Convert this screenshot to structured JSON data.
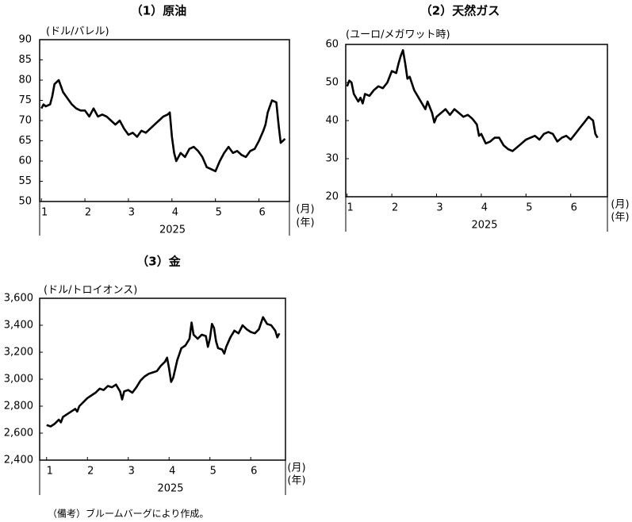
{
  "chart_data": [
    {
      "type": "line",
      "title": "（1）原油",
      "ylabel": "(ドル/バレル)",
      "x_unit": "(月)",
      "year_unit": "(年)",
      "year": "2025",
      "color": "#000000",
      "xlim": [
        0.96,
        6.7
      ],
      "xticks": [
        1,
        2,
        3,
        4,
        5,
        6
      ],
      "ylim": [
        50,
        90
      ],
      "yticks": [
        50,
        55,
        60,
        65,
        70,
        75,
        80,
        85,
        90
      ],
      "x": [
        1.0,
        1.05,
        1.1,
        1.2,
        1.25,
        1.3,
        1.4,
        1.5,
        1.6,
        1.7,
        1.8,
        1.9,
        2.0,
        2.1,
        2.2,
        2.3,
        2.4,
        2.5,
        2.6,
        2.7,
        2.8,
        2.9,
        3.0,
        3.1,
        3.2,
        3.3,
        3.4,
        3.5,
        3.6,
        3.7,
        3.8,
        3.9,
        3.95,
        4.0,
        4.05,
        4.1,
        4.2,
        4.3,
        4.4,
        4.5,
        4.6,
        4.7,
        4.8,
        4.9,
        5.0,
        5.1,
        5.2,
        5.3,
        5.4,
        5.5,
        5.6,
        5.7,
        5.8,
        5.9,
        6.0,
        6.1,
        6.15,
        6.2,
        6.3,
        6.4,
        6.45,
        6.5,
        6.6
      ],
      "values": [
        73,
        74,
        73.5,
        74,
        76,
        79,
        80,
        77,
        75.5,
        74,
        73,
        72.5,
        72.5,
        71,
        73,
        71,
        71.5,
        71,
        70,
        69,
        70,
        68,
        66.5,
        67,
        66,
        67.5,
        67,
        68,
        69,
        70,
        71,
        71.5,
        72,
        66,
        62,
        60,
        62,
        61,
        63,
        63.5,
        62.5,
        61,
        58.5,
        58,
        57.5,
        60,
        62,
        63.5,
        62,
        62.5,
        61.5,
        61,
        62.5,
        63,
        65,
        67.5,
        69,
        72,
        75,
        74.5,
        69,
        64.5,
        65.5
      ]
    },
    {
      "type": "line",
      "title": "（2）天然ガス",
      "ylabel": "(ユーロ/メガワット時)",
      "x_unit": "(月)",
      "year_unit": "(年)",
      "year": "2025",
      "color": "#000000",
      "xlim": [
        0.97,
        6.82
      ],
      "xticks": [
        1,
        2,
        3,
        4,
        5,
        6
      ],
      "ylim": [
        20,
        60
      ],
      "yticks": [
        20,
        30,
        40,
        50,
        60
      ],
      "x": [
        1.0,
        1.05,
        1.1,
        1.15,
        1.25,
        1.3,
        1.35,
        1.4,
        1.5,
        1.6,
        1.7,
        1.8,
        1.9,
        2.0,
        2.1,
        2.15,
        2.2,
        2.25,
        2.3,
        2.35,
        2.4,
        2.5,
        2.6,
        2.7,
        2.75,
        2.8,
        2.9,
        2.95,
        3.0,
        3.1,
        3.2,
        3.3,
        3.4,
        3.5,
        3.6,
        3.7,
        3.8,
        3.9,
        3.95,
        4.0,
        4.1,
        4.2,
        4.3,
        4.4,
        4.5,
        4.6,
        4.7,
        4.8,
        4.9,
        5.0,
        5.1,
        5.2,
        5.3,
        5.4,
        5.5,
        5.6,
        5.7,
        5.8,
        5.9,
        6.0,
        6.1,
        6.2,
        6.3,
        6.4,
        6.5,
        6.55,
        6.6
      ],
      "values": [
        49,
        50.5,
        50,
        47,
        45,
        46,
        44.5,
        47,
        46.5,
        48,
        49,
        48.5,
        50,
        53,
        52.5,
        55,
        57,
        58.5,
        55,
        51,
        51.5,
        48,
        46,
        44,
        43,
        45,
        42,
        39.5,
        41,
        42,
        43,
        41.5,
        43,
        42,
        41,
        41.5,
        40.5,
        39,
        36,
        36.5,
        34,
        34.5,
        35.5,
        35.5,
        33.5,
        32.5,
        32,
        33,
        34,
        35,
        35.5,
        36,
        35,
        36.5,
        37,
        36.5,
        34.5,
        35.5,
        36,
        35,
        36.5,
        38,
        39.5,
        41,
        40,
        36.5,
        35.5
      ]
    },
    {
      "type": "line",
      "title": "（3）金",
      "ylabel": "(ドル/トロイオンス)",
      "x_unit": "(月)",
      "year_unit": "(年)",
      "year": "2025",
      "color": "#000000",
      "xlim": [
        0.83,
        6.85
      ],
      "xticks": [
        1,
        2,
        3,
        4,
        5,
        6
      ],
      "ylim": [
        2400,
        3600
      ],
      "yticks": [
        {
          "value": 2400,
          "label": "2,400"
        },
        {
          "value": 2600,
          "label": "2,600"
        },
        {
          "value": 2800,
          "label": "2,800"
        },
        {
          "value": 3000,
          "label": "3,000"
        },
        {
          "value": 3200,
          "label": "3,200"
        },
        {
          "value": 3400,
          "label": "3,400"
        },
        {
          "value": 3600,
          "label": "3,600"
        }
      ],
      "x": [
        1.0,
        1.1,
        1.2,
        1.3,
        1.35,
        1.4,
        1.5,
        1.6,
        1.7,
        1.75,
        1.8,
        1.9,
        2.0,
        2.1,
        2.2,
        2.3,
        2.4,
        2.5,
        2.6,
        2.7,
        2.8,
        2.85,
        2.9,
        3.0,
        3.1,
        3.2,
        3.3,
        3.4,
        3.5,
        3.6,
        3.7,
        3.8,
        3.9,
        3.95,
        4.0,
        4.05,
        4.1,
        4.2,
        4.3,
        4.4,
        4.5,
        4.55,
        4.6,
        4.7,
        4.8,
        4.9,
        4.95,
        5.0,
        5.05,
        5.1,
        5.15,
        5.2,
        5.3,
        5.35,
        5.4,
        5.5,
        5.6,
        5.7,
        5.8,
        5.9,
        6.0,
        6.1,
        6.2,
        6.3,
        6.4,
        6.5,
        6.6,
        6.65,
        6.7
      ],
      "values": [
        2660,
        2650,
        2670,
        2700,
        2680,
        2720,
        2740,
        2760,
        2780,
        2760,
        2800,
        2830,
        2860,
        2880,
        2900,
        2930,
        2920,
        2950,
        2940,
        2960,
        2910,
        2850,
        2910,
        2920,
        2900,
        2940,
        2990,
        3020,
        3040,
        3050,
        3060,
        3100,
        3130,
        3160,
        3080,
        2980,
        3010,
        3140,
        3230,
        3250,
        3300,
        3420,
        3330,
        3300,
        3330,
        3320,
        3240,
        3300,
        3410,
        3380,
        3280,
        3230,
        3220,
        3190,
        3240,
        3310,
        3360,
        3340,
        3400,
        3370,
        3350,
        3340,
        3370,
        3460,
        3410,
        3400,
        3360,
        3310,
        3340
      ]
    }
  ],
  "footnote": "（備考）ブルームバーグにより作成。"
}
